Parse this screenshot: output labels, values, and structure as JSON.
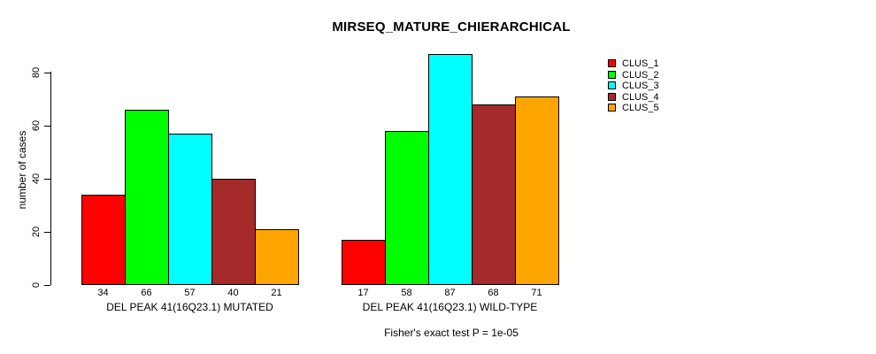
{
  "title": "MIRSEQ_MATURE_CHIERARCHICAL",
  "chart_data": {
    "type": "bar",
    "title": "MIRSEQ_MATURE_CHIERARCHICAL",
    "xlabel": "",
    "ylabel": "number of cases",
    "ylim": [
      0,
      80
    ],
    "yticks": [
      0,
      20,
      40,
      60,
      80
    ],
    "grid": false,
    "legend_position": "top-right",
    "categories": [
      "DEL PEAK 41(16Q23.1) MUTATED",
      "DEL PEAK 41(16Q23.1) WILD-TYPE"
    ],
    "series": [
      {
        "name": "CLUS_1",
        "color": "#FF0000",
        "values": [
          34,
          17
        ]
      },
      {
        "name": "CLUS_2",
        "color": "#00FF00",
        "values": [
          66,
          58
        ]
      },
      {
        "name": "CLUS_3",
        "color": "#00FFFF",
        "values": [
          57,
          87
        ]
      },
      {
        "name": "CLUS_4",
        "color": "#A52A2A",
        "values": [
          40,
          68
        ]
      },
      {
        "name": "CLUS_5",
        "color": "#FFA500",
        "values": [
          21,
          71
        ]
      }
    ],
    "bar_value_labels": [
      [
        34,
        66,
        57,
        40,
        21
      ],
      [
        17,
        58,
        87,
        68,
        71
      ]
    ],
    "annotation": "Fisher's exact test P = 1e-05"
  },
  "legend": {
    "items": [
      {
        "label": "CLUS_1",
        "color": "#FF0000"
      },
      {
        "label": "CLUS_2",
        "color": "#00FF00"
      },
      {
        "label": "CLUS_3",
        "color": "#00FFFF"
      },
      {
        "label": "CLUS_4",
        "color": "#A52A2A"
      },
      {
        "label": "CLUS_5",
        "color": "#FFA500"
      }
    ]
  }
}
